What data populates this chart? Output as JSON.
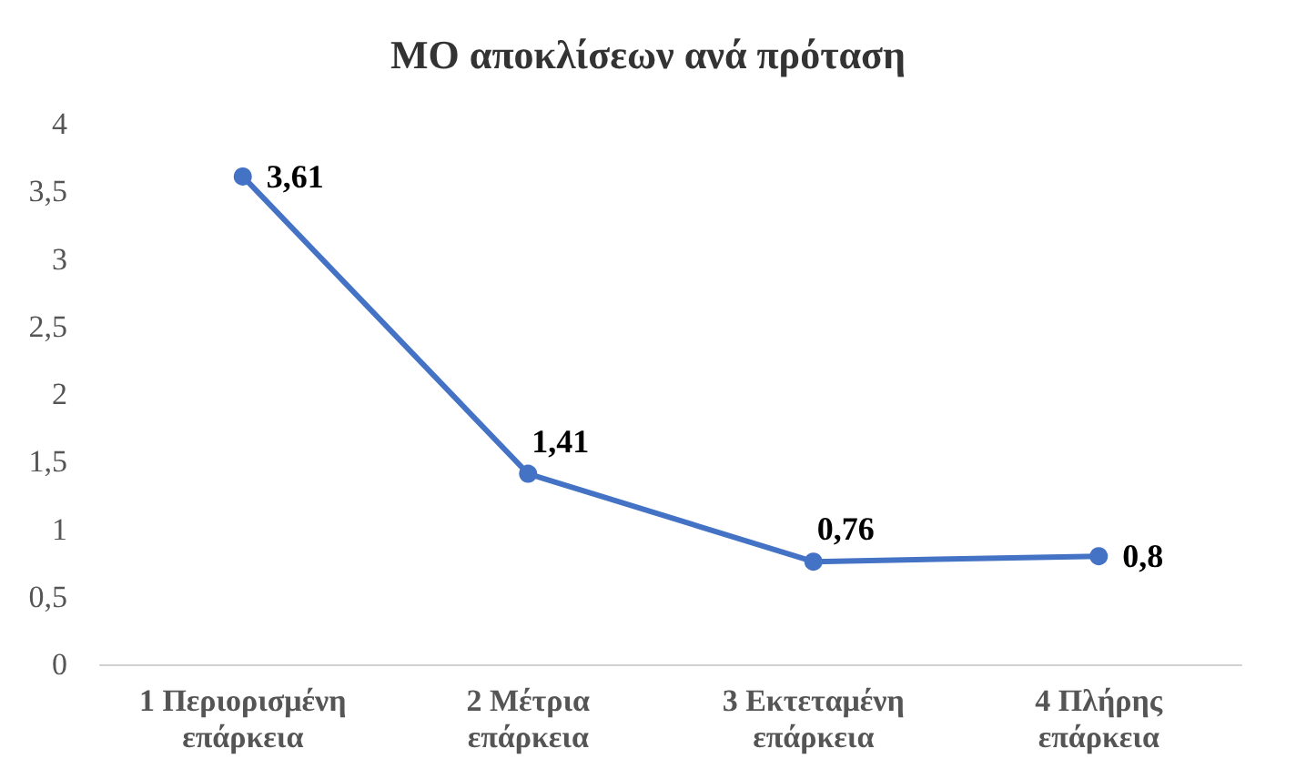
{
  "chart_data": {
    "type": "line",
    "title": "ΜΟ αποκλίσεων ανά πρόταση",
    "categories": [
      "1 Περιορισμένη\nεπάρκεια",
      "2 Μέτρια\nεπάρκεια",
      "3 Εκτεταμένη\nεπάρκεια",
      "4 Πλήρης\nεπάρκεια"
    ],
    "series": [
      {
        "color": "#4472c4",
        "values": [
          3.61,
          1.41,
          0.76,
          0.8
        ],
        "value_labels": [
          "3,61",
          "1,41",
          "0,76",
          "0,8"
        ]
      }
    ],
    "ylim": [
      0,
      4
    ],
    "yticks": [
      0,
      {
        "value": 0.5,
        "label": "0,5"
      },
      1,
      {
        "value": 1.5,
        "label": "1,5"
      },
      2,
      {
        "value": 2.5,
        "label": "2,5"
      },
      3,
      {
        "value": 3.5,
        "label": "3,5"
      },
      4
    ],
    "grid": false,
    "marker": "circle",
    "line_style": "solid"
  }
}
